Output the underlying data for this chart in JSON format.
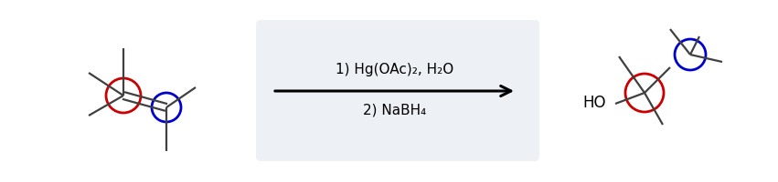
{
  "bg_color": "#ffffff",
  "reaction_box_color": "#edf0f5",
  "line1": "1) Hg(OAc)₂, H₂O",
  "line2": "2) NaBH₄",
  "text_fontsize": 11,
  "red_color": "#cc0000",
  "blue_color": "#0000cc",
  "line_color": "#404040",
  "line_width": 1.6,
  "circle_lw": 2.0,
  "fig_w": 8.51,
  "fig_h": 2.01
}
